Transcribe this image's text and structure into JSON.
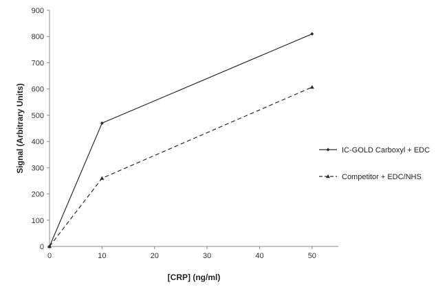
{
  "chart_data": {
    "type": "line",
    "xlabel": "[CRP] (ng/ml)",
    "ylabel": "Signal (Arbitrary Units)",
    "xlim": [
      0,
      55
    ],
    "ylim": [
      0,
      900
    ],
    "xticks": [
      "0",
      "10",
      "20",
      "30",
      "40",
      "50"
    ],
    "yticks": [
      "0",
      "100",
      "200",
      "300",
      "400",
      "500",
      "600",
      "700",
      "800",
      "900"
    ],
    "grid": false,
    "legend_position": "right",
    "series": [
      {
        "name": "IC-GOLD Carboxyl + EDC",
        "style": "solid",
        "marker": "diamond",
        "color": "#2a2a2a",
        "x": [
          0,
          10,
          50
        ],
        "y": [
          0,
          470,
          810
        ]
      },
      {
        "name": "Competitor + EDC/NHS",
        "style": "dashed",
        "marker": "triangle",
        "color": "#2a2a2a",
        "x": [
          0,
          10,
          50
        ],
        "y": [
          0,
          260,
          607
        ]
      }
    ]
  }
}
